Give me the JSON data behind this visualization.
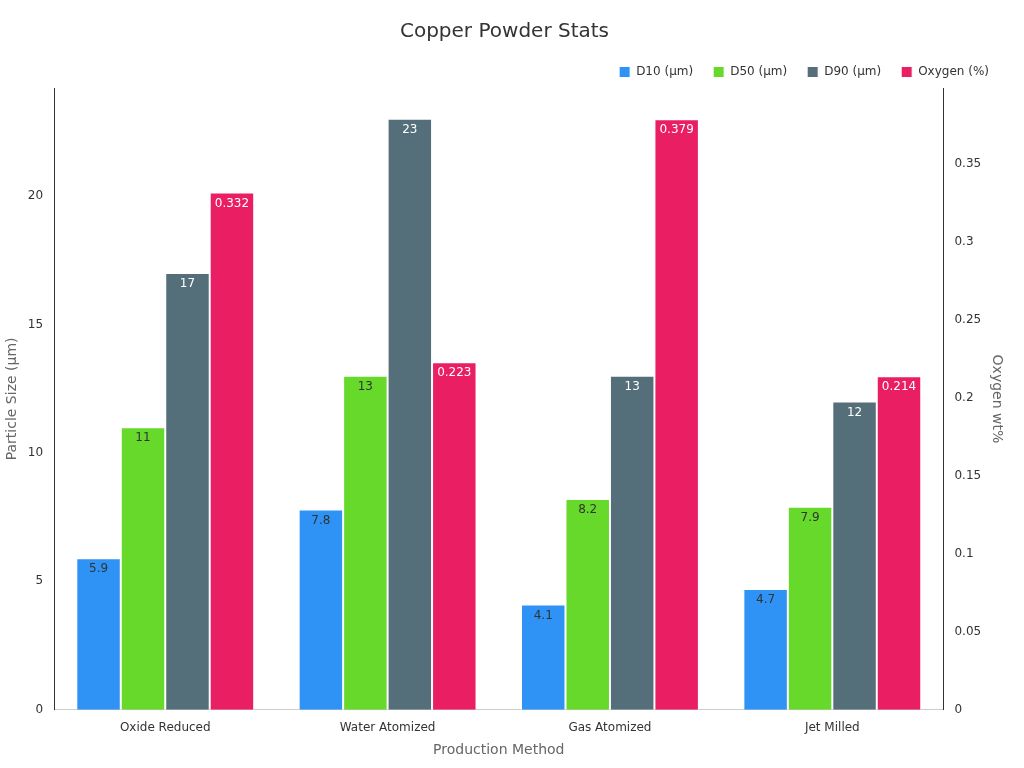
{
  "chart_data": {
    "type": "bar",
    "title": "Copper Powder Stats",
    "xlabel": "Production Method",
    "ylabel": "Particle Size (µm)",
    "y2label": "Oxygen wt%",
    "categories": [
      "Oxide Reduced",
      "Water Atomized",
      "Gas Atomized",
      "Jet Milled"
    ],
    "series": [
      {
        "name": "D10 (µm)",
        "color": "#2e93f5",
        "values": [
          5.9,
          7.8,
          4.1,
          4.7
        ]
      },
      {
        "name": "D50 (µm)",
        "color": "#66d92a",
        "values": [
          11,
          13,
          8.2,
          7.9
        ]
      },
      {
        "name": "D90 (µm)",
        "color": "#546e7a",
        "values": [
          17,
          23,
          13,
          12
        ]
      },
      {
        "name": "Oxygen (%)",
        "color": "#e91e63",
        "values": [
          0.332,
          0.223,
          0.379,
          0.214
        ],
        "axis": "y2"
      }
    ],
    "ylim": [
      0,
      24.2
    ],
    "yticks": [
      0,
      5,
      10,
      15,
      20
    ],
    "y2lim": [
      0,
      0.399
    ],
    "y2ticks": [
      0,
      0.05,
      0.1,
      0.15,
      0.2,
      0.25,
      0.3,
      0.35
    ],
    "grid": false,
    "legend": "top right",
    "data_labels": true
  }
}
